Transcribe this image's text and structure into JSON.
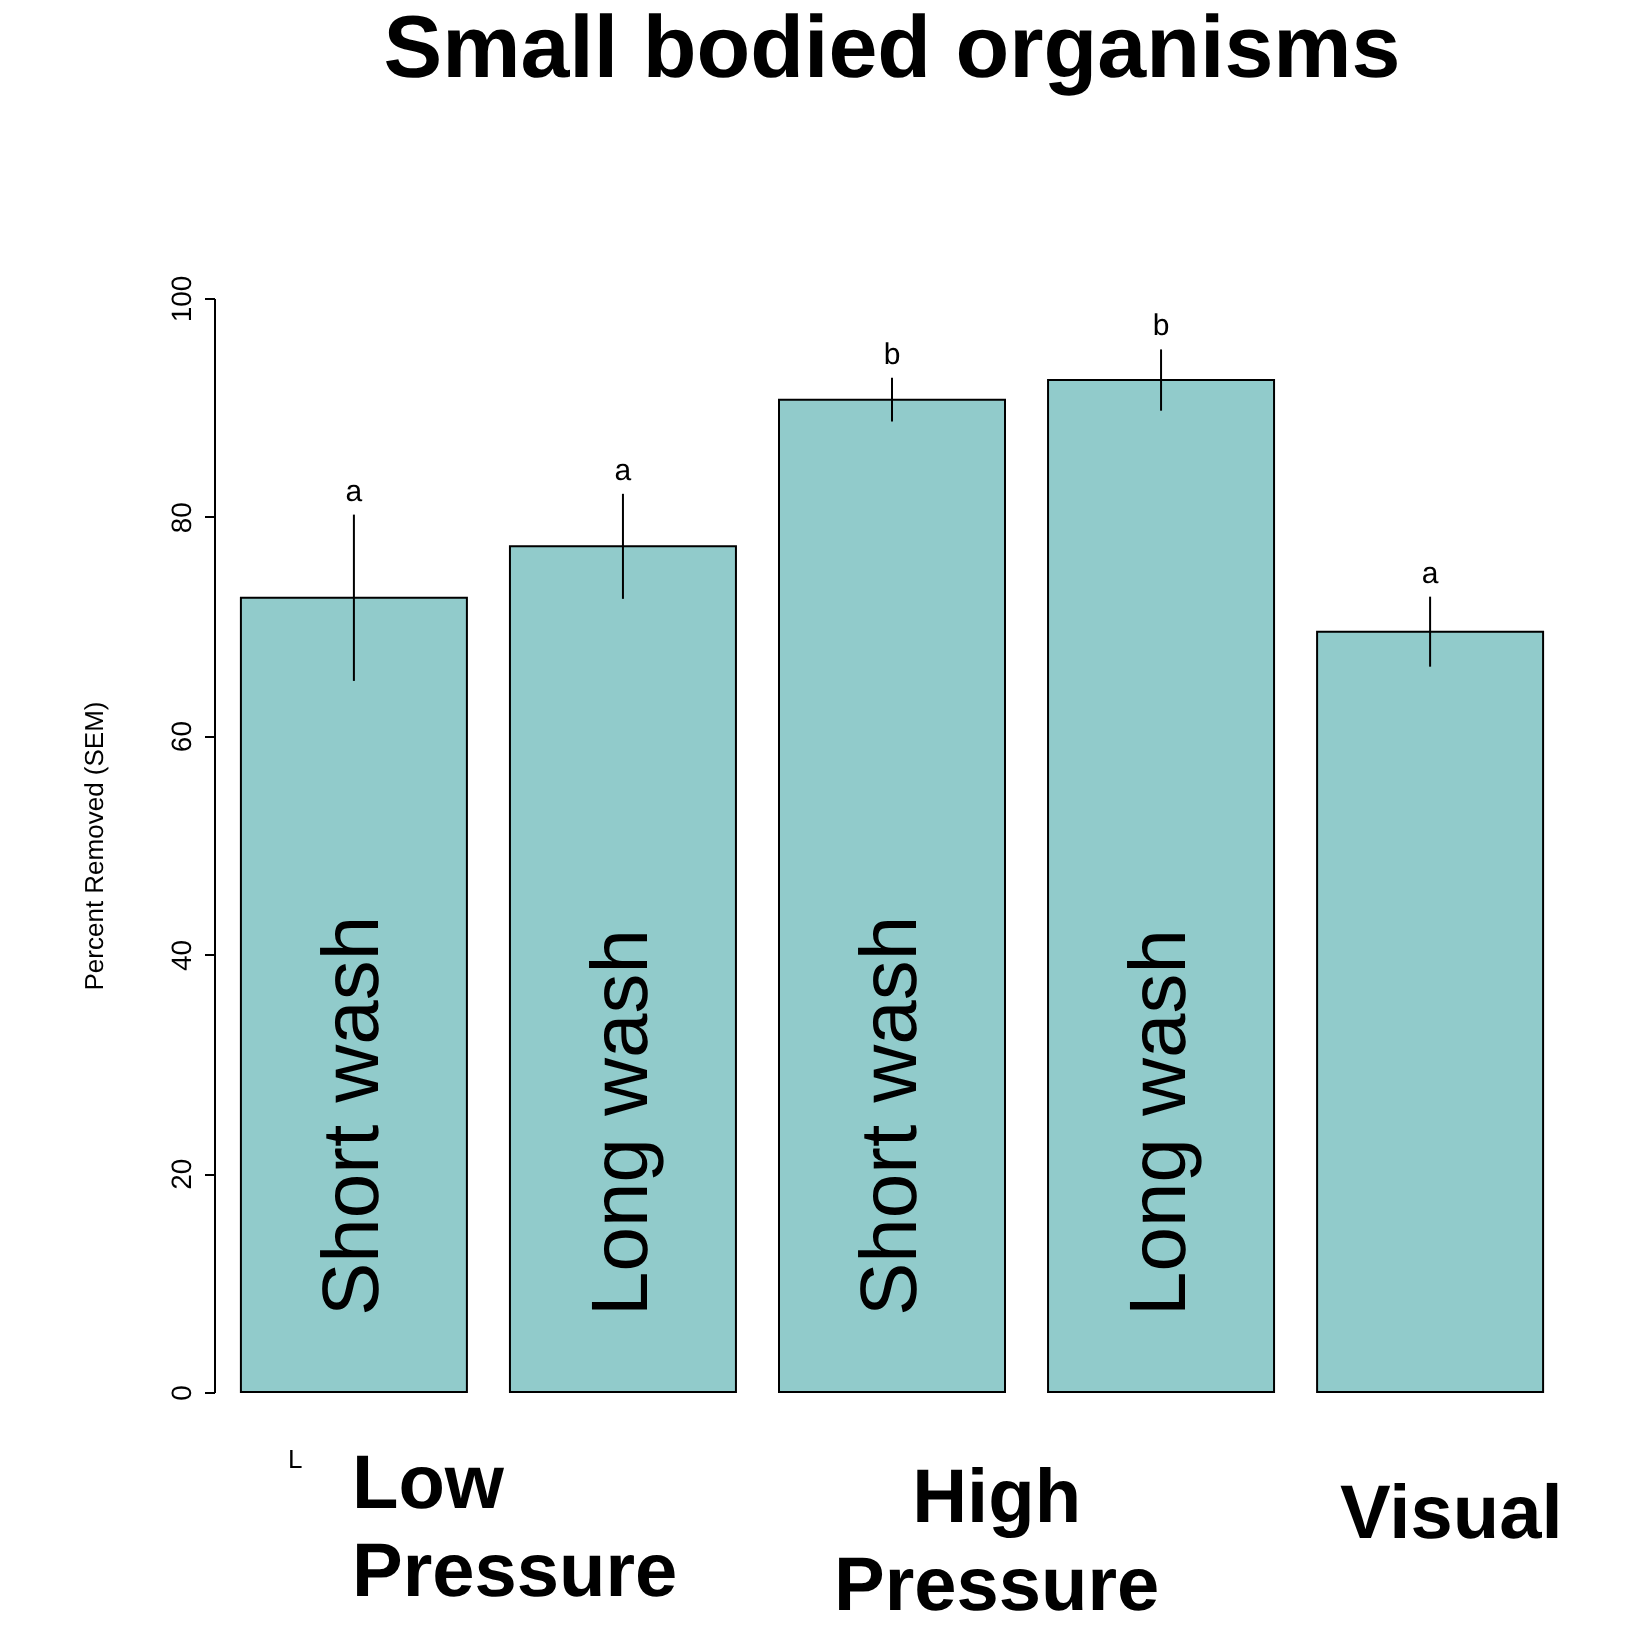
{
  "chart_data": {
    "type": "bar",
    "title": "Small bodied organisms",
    "ylabel": "Percent Removed (SEM)",
    "categories": [
      "Short wash",
      "Long wash",
      "Short wash",
      "Long wash",
      null
    ],
    "values": [
      72.6,
      77.3,
      90.7,
      92.5,
      69.5
    ],
    "errors": [
      7.6,
      4.8,
      2.0,
      2.8,
      3.2
    ],
    "value_labels": [
      "a",
      "a",
      "b",
      "b",
      "a"
    ],
    "color": "#91cbcb",
    "ylim": [
      0,
      100
    ],
    "yticks": [
      0,
      20,
      40,
      60,
      80,
      100
    ],
    "grid": false,
    "annotations": [
      "L",
      "Low Pressure",
      "High Pressure",
      "Visual"
    ]
  }
}
